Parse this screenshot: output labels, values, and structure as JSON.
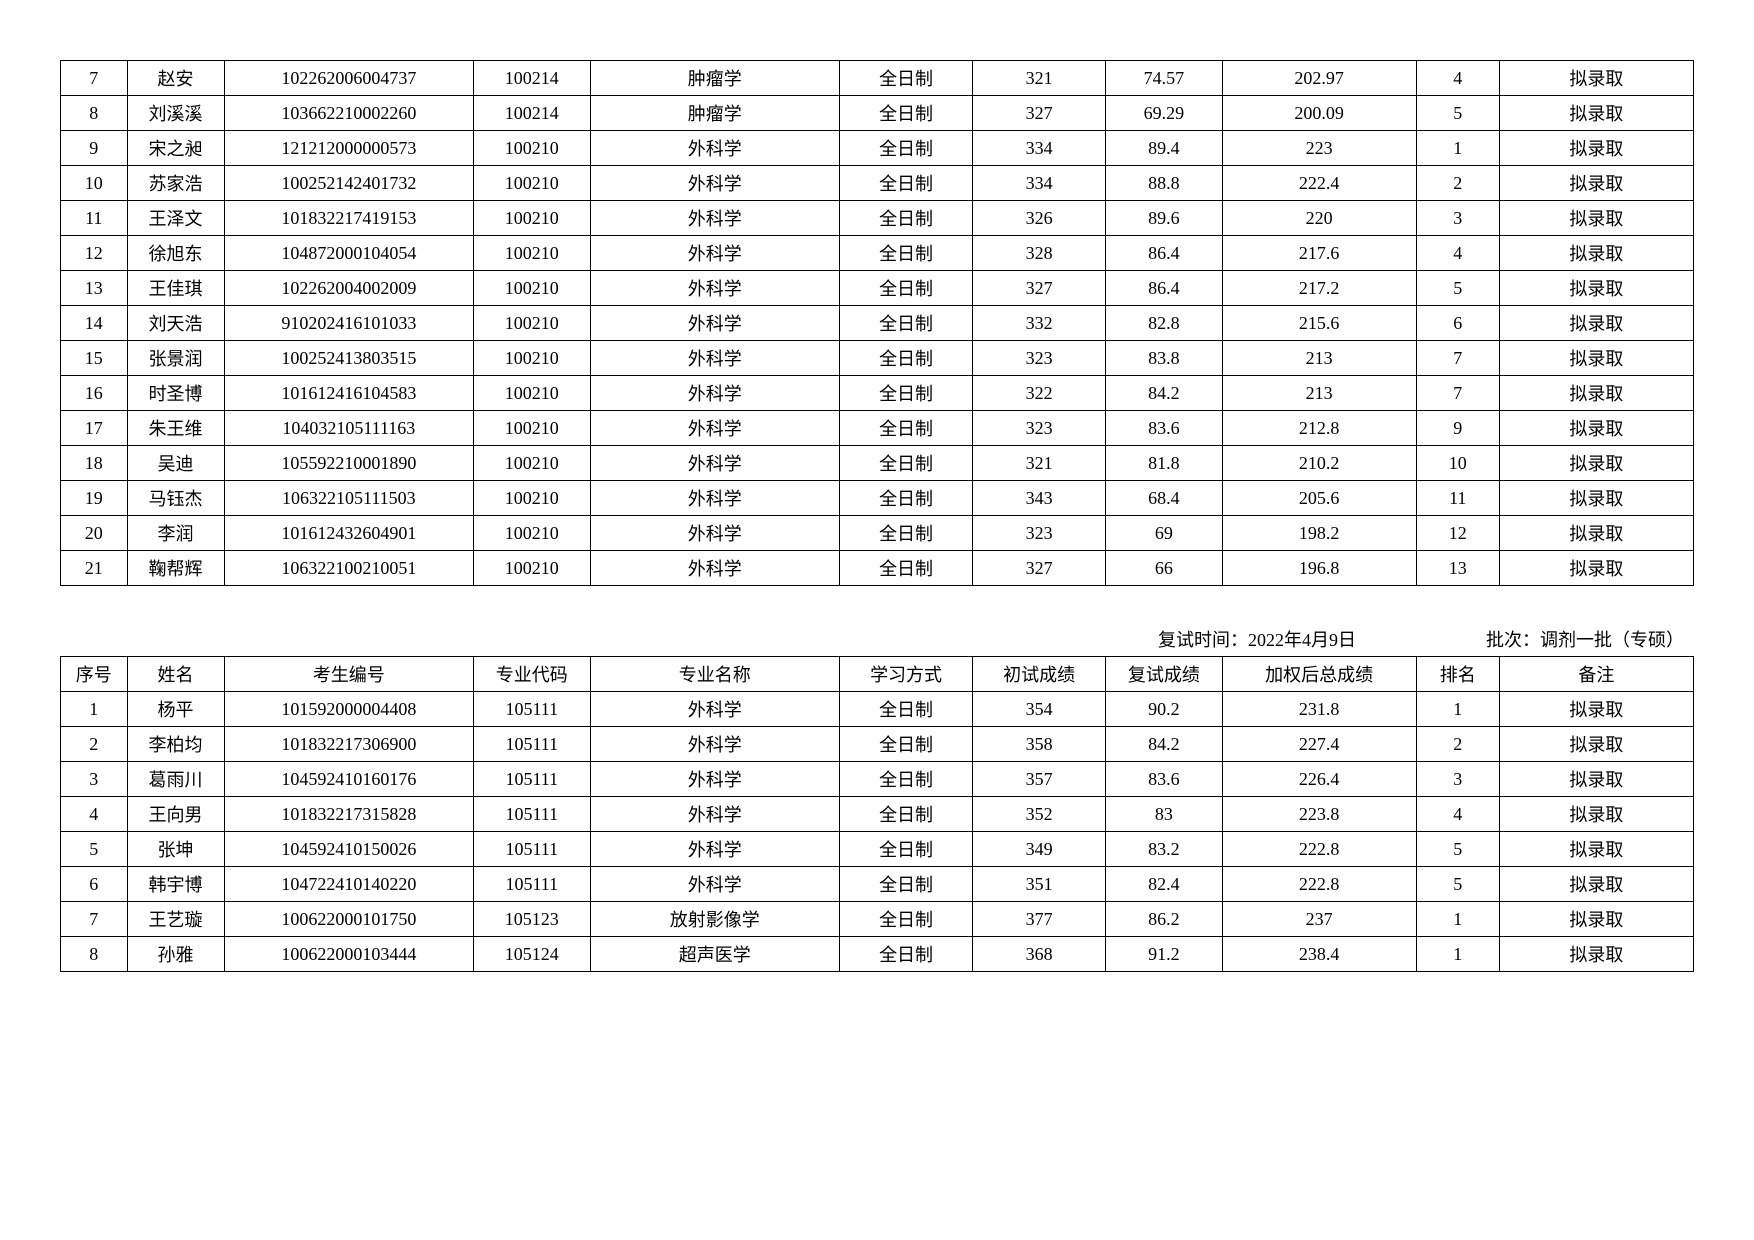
{
  "table1": {
    "columns": [
      "序号",
      "姓名",
      "考生编号",
      "专业代码",
      "专业名称",
      "学习方式",
      "初试成绩",
      "复试成绩",
      "加权后总成绩",
      "排名",
      "备注"
    ],
    "rows": [
      [
        "7",
        "赵安",
        "102262006004737",
        "100214",
        "肿瘤学",
        "全日制",
        "321",
        "74.57",
        "202.97",
        "4",
        "拟录取"
      ],
      [
        "8",
        "刘溪溪",
        "103662210002260",
        "100214",
        "肿瘤学",
        "全日制",
        "327",
        "69.29",
        "200.09",
        "5",
        "拟录取"
      ],
      [
        "9",
        "宋之昶",
        "121212000000573",
        "100210",
        "外科学",
        "全日制",
        "334",
        "89.4",
        "223",
        "1",
        "拟录取"
      ],
      [
        "10",
        "苏家浩",
        "100252142401732",
        "100210",
        "外科学",
        "全日制",
        "334",
        "88.8",
        "222.4",
        "2",
        "拟录取"
      ],
      [
        "11",
        "王泽文",
        "101832217419153",
        "100210",
        "外科学",
        "全日制",
        "326",
        "89.6",
        "220",
        "3",
        "拟录取"
      ],
      [
        "12",
        "徐旭东",
        "104872000104054",
        "100210",
        "外科学",
        "全日制",
        "328",
        "86.4",
        "217.6",
        "4",
        "拟录取"
      ],
      [
        "13",
        "王佳琪",
        "102262004002009",
        "100210",
        "外科学",
        "全日制",
        "327",
        "86.4",
        "217.2",
        "5",
        "拟录取"
      ],
      [
        "14",
        "刘天浩",
        "910202416101033",
        "100210",
        "外科学",
        "全日制",
        "332",
        "82.8",
        "215.6",
        "6",
        "拟录取"
      ],
      [
        "15",
        "张景润",
        "100252413803515",
        "100210",
        "外科学",
        "全日制",
        "323",
        "83.8",
        "213",
        "7",
        "拟录取"
      ],
      [
        "16",
        "时圣博",
        "101612416104583",
        "100210",
        "外科学",
        "全日制",
        "322",
        "84.2",
        "213",
        "7",
        "拟录取"
      ],
      [
        "17",
        "朱王维",
        "104032105111163",
        "100210",
        "外科学",
        "全日制",
        "323",
        "83.6",
        "212.8",
        "9",
        "拟录取"
      ],
      [
        "18",
        "吴迪",
        "105592210001890",
        "100210",
        "外科学",
        "全日制",
        "321",
        "81.8",
        "210.2",
        "10",
        "拟录取"
      ],
      [
        "19",
        "马钰杰",
        "106322105111503",
        "100210",
        "外科学",
        "全日制",
        "343",
        "68.4",
        "205.6",
        "11",
        "拟录取"
      ],
      [
        "20",
        "李润",
        "101612432604901",
        "100210",
        "外科学",
        "全日制",
        "323",
        "69",
        "198.2",
        "12",
        "拟录取"
      ],
      [
        "21",
        "鞠帮辉",
        "106322100210051",
        "100210",
        "外科学",
        "全日制",
        "327",
        "66",
        "196.8",
        "13",
        "拟录取"
      ]
    ]
  },
  "meta": {
    "retest_label": "复试时间：",
    "retest_value": "2022年4月9日",
    "batch_label": "批次：",
    "batch_value": "调剂一批（专硕）"
  },
  "headers": [
    "序号",
    "姓名",
    "考生编号",
    "专业代码",
    "专业名称",
    "学习方式",
    "初试成绩",
    "复试成绩",
    "加权后总成绩",
    "排名",
    "备注"
  ],
  "table2": {
    "rows": [
      [
        "1",
        "杨平",
        "101592000004408",
        "105111",
        "外科学",
        "全日制",
        "354",
        "90.2",
        "231.8",
        "1",
        "拟录取"
      ],
      [
        "2",
        "李柏均",
        "101832217306900",
        "105111",
        "外科学",
        "全日制",
        "358",
        "84.2",
        "227.4",
        "2",
        "拟录取"
      ],
      [
        "3",
        "葛雨川",
        "104592410160176",
        "105111",
        "外科学",
        "全日制",
        "357",
        "83.6",
        "226.4",
        "3",
        "拟录取"
      ],
      [
        "4",
        "王向男",
        "101832217315828",
        "105111",
        "外科学",
        "全日制",
        "352",
        "83",
        "223.8",
        "4",
        "拟录取"
      ],
      [
        "5",
        "张坤",
        "104592410150026",
        "105111",
        "外科学",
        "全日制",
        "349",
        "83.2",
        "222.8",
        "5",
        "拟录取"
      ],
      [
        "6",
        "韩宇博",
        "104722410140220",
        "105111",
        "外科学",
        "全日制",
        "351",
        "82.4",
        "222.8",
        "5",
        "拟录取"
      ],
      [
        "7",
        "王艺璇",
        "100622000101750",
        "105123",
        "放射影像学",
        "全日制",
        "377",
        "86.2",
        "237",
        "1",
        "拟录取"
      ],
      [
        "8",
        "孙雅",
        "100622000103444",
        "105124",
        "超声医学",
        "全日制",
        "368",
        "91.2",
        "238.4",
        "1",
        "拟录取"
      ]
    ]
  }
}
